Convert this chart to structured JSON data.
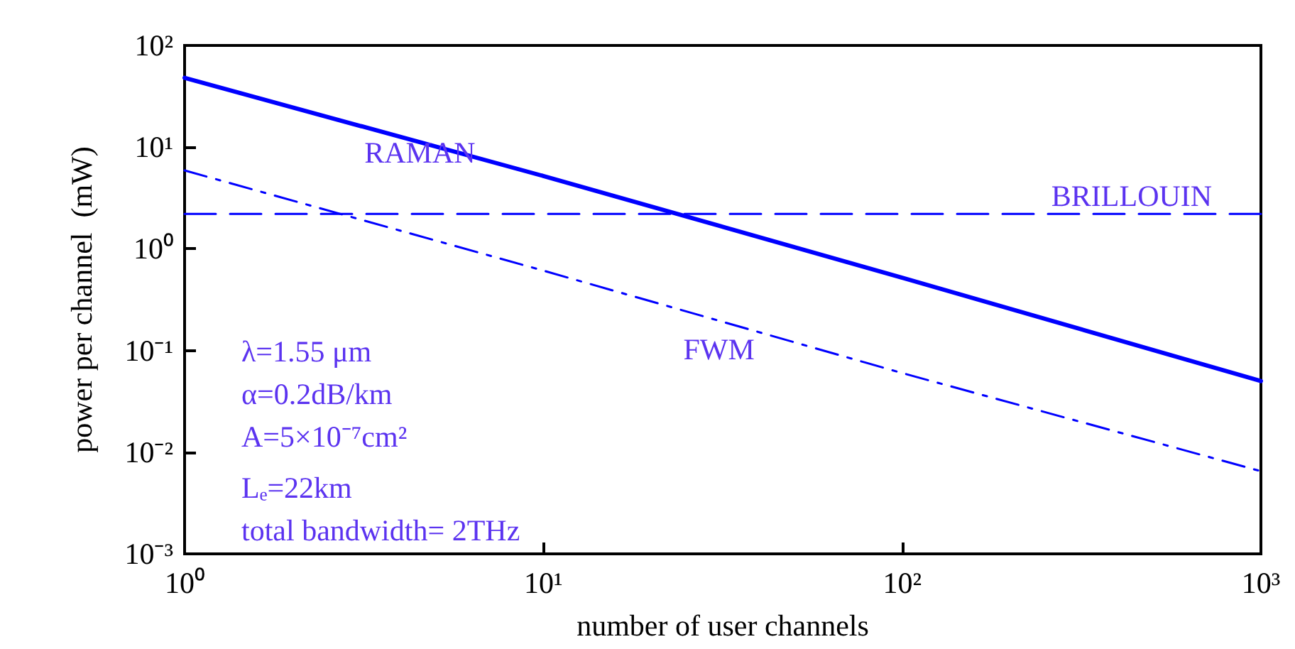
{
  "chart_data": {
    "type": "line",
    "xlabel": "number of user channels",
    "ylabel": "power per channel  (mW)",
    "log": "xy",
    "grid": false,
    "legend": false,
    "marker": "none",
    "xlim": [
      1,
      1000
    ],
    "xticks": [
      {
        "value": 1,
        "label": "10⁰"
      },
      {
        "value": 10,
        "label": "10¹"
      },
      {
        "value": 100,
        "label": "10²"
      },
      {
        "value": 1000,
        "label": "10³"
      }
    ],
    "ylim": [
      0.001,
      100
    ],
    "yticks": [
      {
        "value": 0.001,
        "label": "10⁻³"
      },
      {
        "value": 0.01,
        "label": "10⁻²"
      },
      {
        "value": 0.1,
        "label": "10⁻¹"
      },
      {
        "value": 1,
        "label": "10⁰"
      },
      {
        "value": 10,
        "label": "10¹"
      },
      {
        "value": 100,
        "label": "10²"
      }
    ],
    "series": [
      {
        "name": "RAMAN",
        "color": "#0000ff",
        "line_style": "solid",
        "x": [
          1,
          10,
          100,
          1000
        ],
        "values": [
          48,
          5.2,
          0.52,
          0.05
        ]
      },
      {
        "name": "BRILLOUIN",
        "color": "#0000ff",
        "line_style": "dashed",
        "x": [
          1,
          1000
        ],
        "values": [
          2.2,
          2.2
        ]
      },
      {
        "name": "FWM",
        "color": "#0000ff",
        "line_style": "dotted",
        "x": [
          1,
          10,
          100,
          1000
        ],
        "values": [
          5.9,
          0.61,
          0.06,
          0.0065
        ]
      }
    ],
    "annotations": [
      "λ=1.55 μm",
      "α=0.2dB/km",
      "A=5×10⁻⁷cm²",
      "Lₑ=22km",
      "total bandwidth= 2THz"
    ]
  }
}
